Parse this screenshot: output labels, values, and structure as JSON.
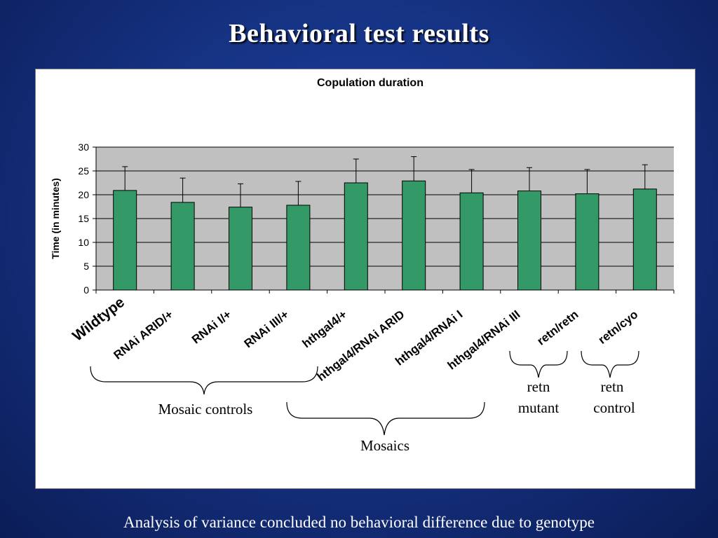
{
  "slide": {
    "title": "Behavioral test results",
    "footer": "Analysis of variance concluded no behavioral difference due to genotype"
  },
  "colors": {
    "background": "#163384",
    "bar_fill": "#339966",
    "plot_area": "#c0c0c0"
  },
  "chart_data": {
    "type": "bar",
    "title": "Copulation duration",
    "xlabel": "",
    "ylabel": "Time (in minutes)",
    "ylim": [
      0,
      30
    ],
    "yticks": [
      0,
      5,
      10,
      15,
      20,
      25,
      30
    ],
    "grid": true,
    "categories": [
      "Wildtype",
      "RNAi ARID/+",
      "RNAi I/+",
      "RNAi III/+",
      "hthgal4/+",
      "hthgal4/RNAi ARID",
      "hthgal4/RNAi I",
      "hthgal4/RNAi III",
      "retn/retn",
      "retn/cyo"
    ],
    "values": [
      20.9,
      18.4,
      17.4,
      17.8,
      22.5,
      22.9,
      20.4,
      20.8,
      20.2,
      21.2
    ],
    "error": [
      5.0,
      5.1,
      4.9,
      5.0,
      5.0,
      5.1,
      4.9,
      4.9,
      5.1,
      5.1
    ],
    "annotations": {
      "mosaic_controls": "Mosaic controls",
      "mosaics": "Mosaics",
      "retn_mutant_line1": "retn",
      "retn_mutant_line2": "mutant",
      "retn_control_line1": "retn",
      "retn_control_line2": "control"
    }
  }
}
